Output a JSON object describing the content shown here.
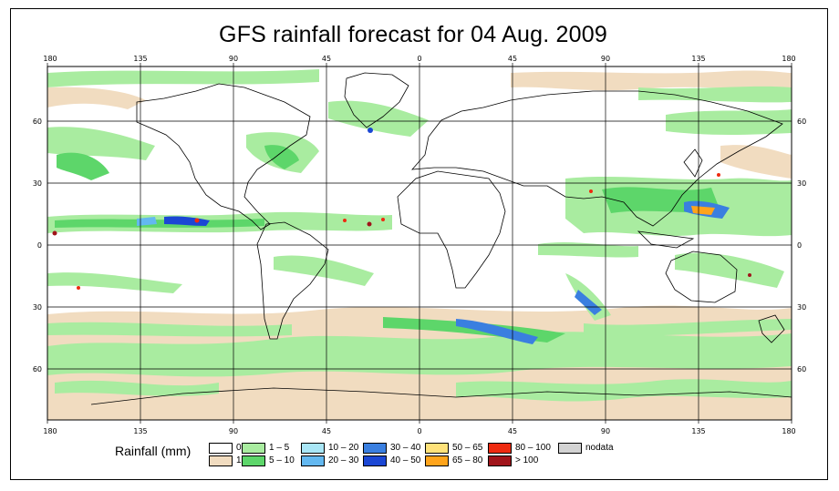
{
  "title": "GFS rainfall forecast for 04 Aug. 2009",
  "axes": {
    "top_lon_labels": [
      "180",
      "135",
      "90",
      "45",
      "0",
      "45",
      "90",
      "135",
      "180"
    ],
    "bottom_lon_labels": [
      "180",
      "135",
      "90",
      "45",
      "0",
      "45",
      "90",
      "135",
      "180"
    ],
    "left_lat_labels": [
      "60",
      "30",
      "0",
      "30",
      "60"
    ],
    "right_lat_labels": [
      "60",
      "30",
      "0",
      "30",
      "60"
    ]
  },
  "legend": {
    "title": "Rainfall (mm)",
    "items": [
      {
        "label": "0",
        "color": "#ffffff"
      },
      {
        "label": "1",
        "color": "#f1dcc0"
      },
      {
        "label": "1 – 5",
        "color": "#a9eca0"
      },
      {
        "label": "5 – 10",
        "color": "#5dd66a"
      },
      {
        "label": "10 – 20",
        "color": "#a9e6f6"
      },
      {
        "label": "20 – 30",
        "color": "#63b8f0"
      },
      {
        "label": "30 – 40",
        "color": "#3a7fe0"
      },
      {
        "label": "40 – 50",
        "color": "#1b47d4"
      },
      {
        "label": "50 – 65",
        "color": "#ffe27a"
      },
      {
        "label": "65 – 80",
        "color": "#ffa41b"
      },
      {
        "label": "80 – 100",
        "color": "#ee2a10"
      },
      {
        "label": "> 100",
        "color": "#a0141a"
      },
      {
        "label": "nodata",
        "color": "#d3d3d3"
      }
    ]
  },
  "colors": {
    "land_outline": "#000000",
    "grid": "#000000"
  }
}
